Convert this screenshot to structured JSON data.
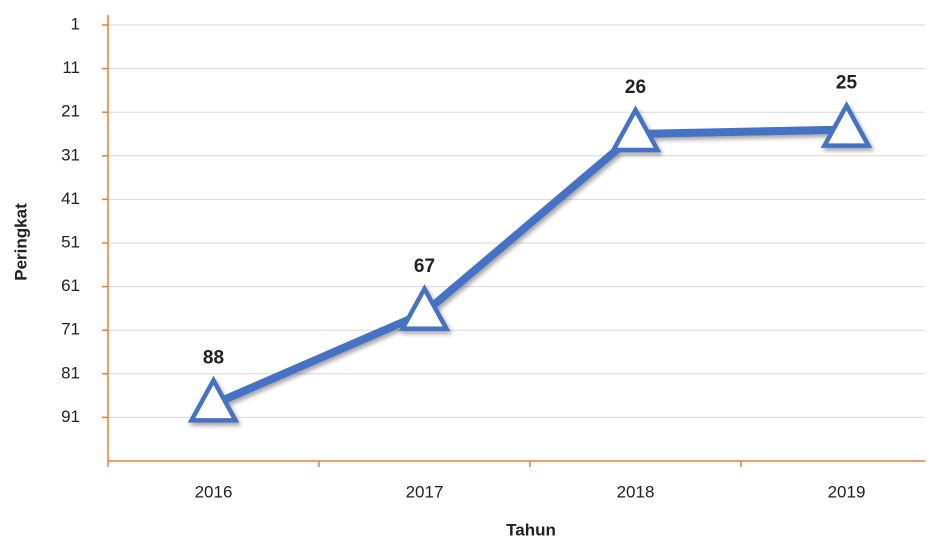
{
  "chart_data": {
    "type": "line",
    "x_label": "Tahun",
    "y_label": "Peringkat",
    "categories": [
      "2016",
      "2017",
      "2018",
      "2019"
    ],
    "series": [
      {
        "name": "Peringkat",
        "color": "#4472c4",
        "values": [
          88,
          67,
          26,
          25
        ]
      }
    ],
    "ylim": [
      101,
      1
    ],
    "yticks": [
      1,
      11,
      21,
      31,
      41,
      51,
      61,
      71,
      81,
      91
    ],
    "y_inverted": true,
    "grid": true,
    "marker": "triangle",
    "axis_color": "#ed7d31"
  }
}
